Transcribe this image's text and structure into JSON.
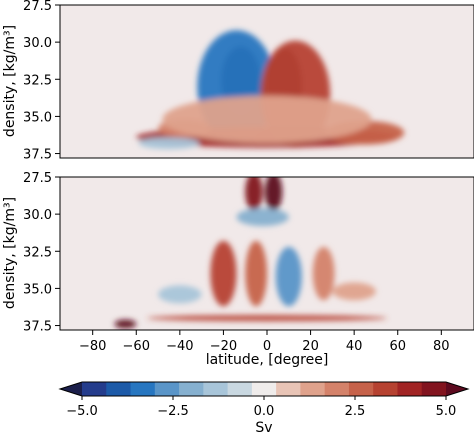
{
  "chart_data": [
    {
      "type": "heatmap",
      "panel": "top",
      "ylabel": "density, [kg/m³]",
      "ylim": [
        37.8,
        27.5
      ],
      "xlim": [
        -95,
        95
      ],
      "y_ticks": [
        "27.5",
        "30.0",
        "32.5",
        "35.0",
        "37.5"
      ],
      "y_tick_values": [
        27.5,
        30.0,
        32.5,
        35.0,
        37.5
      ],
      "colorscale": "balance",
      "blobs": [
        {
          "x": -12,
          "y": 32.6,
          "rx": 9,
          "ry": 2.3,
          "value": -5.0
        },
        {
          "x": -14,
          "y": 33.0,
          "rx": 18,
          "ry": 3.8,
          "value": -3.0
        },
        {
          "x": 8,
          "y": 33.0,
          "rx": 8,
          "ry": 2.6,
          "value": 5.0
        },
        {
          "x": 13,
          "y": 33.5,
          "rx": 16,
          "ry": 3.6,
          "value": 3.0
        },
        {
          "x": 0,
          "y": 36.4,
          "rx": 60,
          "ry": 0.7,
          "value": 3.5
        },
        {
          "x": -38,
          "y": 35.8,
          "rx": 12,
          "ry": 0.6,
          "value": 2.0
        },
        {
          "x": 45,
          "y": 36.1,
          "rx": 18,
          "ry": 0.8,
          "value": 2.5
        },
        {
          "x": -45,
          "y": 36.8,
          "rx": 14,
          "ry": 0.4,
          "value": -1.5
        },
        {
          "x": 0,
          "y": 35.2,
          "rx": 48,
          "ry": 1.6,
          "value": 1.0
        }
      ]
    },
    {
      "type": "heatmap",
      "panel": "bottom",
      "ylabel": "density, [kg/m³]",
      "xlabel": "latitude, [degree]",
      "ylim": [
        37.8,
        27.5
      ],
      "xlim": [
        -95,
        95
      ],
      "x_ticks": [
        "−80",
        "−60",
        "−40",
        "−20",
        "0",
        "20",
        "40",
        "60",
        "80"
      ],
      "x_tick_values": [
        -80,
        -60,
        -40,
        -20,
        0,
        20,
        40,
        60,
        80
      ],
      "y_ticks": [
        "27.5",
        "30.0",
        "32.5",
        "35.0",
        "37.5"
      ],
      "y_tick_values": [
        27.5,
        30.0,
        32.5,
        35.0,
        37.5
      ],
      "colorscale": "balance",
      "blobs": [
        {
          "x": -6,
          "y": 28.5,
          "rx": 4,
          "ry": 1.3,
          "value": 4.5
        },
        {
          "x": 3,
          "y": 28.5,
          "rx": 4,
          "ry": 1.3,
          "value": 5.0
        },
        {
          "x": -2,
          "y": 30.2,
          "rx": 12,
          "ry": 0.6,
          "value": -2.0
        },
        {
          "x": -20,
          "y": 34.0,
          "rx": 6,
          "ry": 2.2,
          "value": 3.0
        },
        {
          "x": -5,
          "y": 34.0,
          "rx": 5,
          "ry": 2.2,
          "value": 2.5
        },
        {
          "x": 10,
          "y": 34.2,
          "rx": 6,
          "ry": 2.0,
          "value": -2.5
        },
        {
          "x": 26,
          "y": 34.0,
          "rx": 5,
          "ry": 1.8,
          "value": 2.0
        },
        {
          "x": -40,
          "y": 35.4,
          "rx": 10,
          "ry": 0.6,
          "value": -1.5
        },
        {
          "x": 40,
          "y": 35.2,
          "rx": 10,
          "ry": 0.6,
          "value": 1.5
        },
        {
          "x": 0,
          "y": 37.0,
          "rx": 55,
          "ry": 0.2,
          "value": 3.0
        },
        {
          "x": -65,
          "y": 37.4,
          "rx": 5,
          "ry": 0.3,
          "value": 5.0
        }
      ]
    },
    {
      "type": "colorbar",
      "label": "Sv",
      "range": [
        -5.0,
        5.0
      ],
      "ticks": [
        "−5.0",
        "−2.5",
        "0.0",
        "2.5",
        "5.0"
      ],
      "tick_values": [
        -5.0,
        -2.5,
        0.0,
        2.5,
        5.0
      ],
      "colors": [
        "#1b1f4b",
        "#243c8c",
        "#1c5aa8",
        "#2776c0",
        "#5a95c8",
        "#86b0cf",
        "#a8c5d9",
        "#c9d8e1",
        "#efeceb",
        "#e8c4b6",
        "#dfa28c",
        "#d4826a",
        "#c6624a",
        "#b64231",
        "#a12424",
        "#82141f",
        "#5d0a1f"
      ]
    }
  ]
}
